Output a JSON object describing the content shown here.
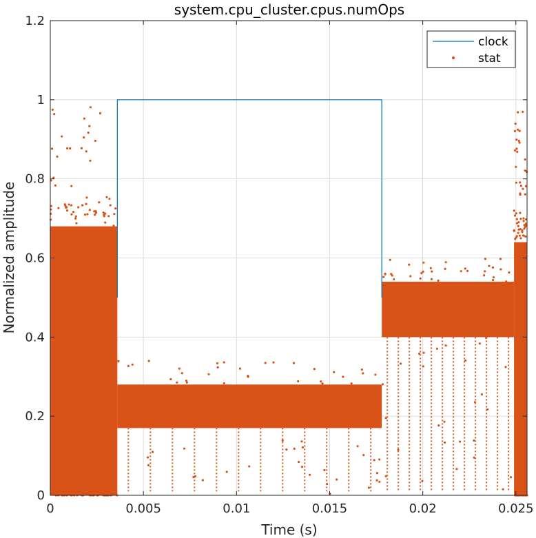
{
  "chart_data": {
    "type": "line",
    "title": "system.cpu_cluster.cpus.numOps",
    "xlabel": "Time (s)",
    "ylabel": "Normalized amplitude",
    "xlim": [
      0,
      0.0256
    ],
    "ylim": [
      0,
      1.2
    ],
    "xticks": [
      0,
      0.005,
      0.01,
      0.015,
      0.02,
      0.025
    ],
    "xtick_labels": [
      "0",
      "0.005",
      "0.01",
      "0.015",
      "0.02",
      "0.025"
    ],
    "yticks": [
      0,
      0.2,
      0.4,
      0.6,
      0.8,
      1,
      1.2
    ],
    "ytick_labels": [
      "0",
      "0.2",
      "0.4",
      "0.6",
      "0.8",
      "1",
      "1.2"
    ],
    "grid": true,
    "legend_position": "top-right",
    "series": [
      {
        "name": "clock",
        "kind": "line",
        "color": "#0072BD",
        "x": [
          0.0036,
          0.0036,
          0.0178,
          0.0178
        ],
        "y": [
          0.5,
          1.0,
          1.0,
          0.5
        ]
      },
      {
        "name": "stat",
        "kind": "scatter",
        "color": "#D95319",
        "segments": [
          {
            "x_start": 0.0,
            "x_end": 0.0036,
            "y_low": 0.0,
            "y_high": 0.68
          },
          {
            "x_start": 0.0036,
            "x_end": 0.0178,
            "y_low": 0.17,
            "y_high": 0.28
          },
          {
            "x_start": 0.0178,
            "x_end": 0.0249,
            "y_low": 0.4,
            "y_high": 0.54
          },
          {
            "x_start": 0.0249,
            "x_end": 0.0256,
            "y_low": 0.0,
            "y_high": 0.64
          }
        ]
      }
    ]
  }
}
